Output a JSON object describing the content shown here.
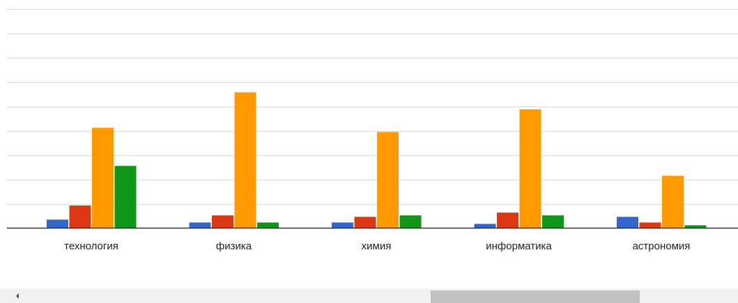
{
  "chart_data": {
    "type": "bar",
    "categories": [
      "технология",
      "физика",
      "химия",
      "информатика",
      "астрономия"
    ],
    "series": [
      {
        "color": "#3366cc",
        "values": [
          6,
          4,
          4,
          3,
          8
        ]
      },
      {
        "color": "#dc3912",
        "values": [
          16,
          9,
          8,
          11,
          4
        ]
      },
      {
        "color": "#ff9900",
        "values": [
          71,
          96,
          68,
          84,
          37
        ]
      },
      {
        "color": "#109618",
        "values": [
          44,
          4,
          9,
          9,
          2
        ]
      }
    ],
    "ylim": [
      0,
      155
    ],
    "grid": true
  },
  "scrollbar": {
    "left_arrow_icon": "chevron-left-icon"
  }
}
